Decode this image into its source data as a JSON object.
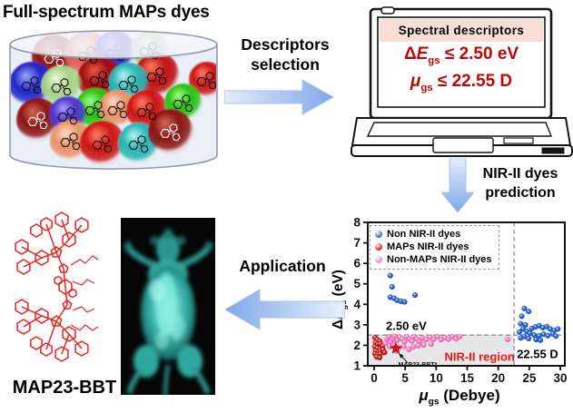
{
  "title": "Full-spectrum MAPs dyes",
  "flow": {
    "descriptors_line1": "Descriptors",
    "descriptors_line2": "selection",
    "prediction_line1": "NIR-II dyes",
    "prediction_line2": "prediction",
    "application": "Application"
  },
  "laptop": {
    "header": "Spectral descriptors",
    "eq1": {
      "sym": "Δ",
      "var": "E",
      "sub": "gs",
      "rest": " ≤ 2.50 eV"
    },
    "eq2": {
      "var": "μ",
      "sub": "gs",
      "rest": " ≤ 22.55 D"
    }
  },
  "molecule_label": "MAP23-BBT",
  "chart_data": {
    "type": "scatter",
    "xlabel": {
      "var": "μ",
      "sub": "gs",
      "rest": " (Debye)"
    },
    "ylabel": {
      "sym": "Δ",
      "var": "E",
      "sub": "gs",
      "rest": " (eV)"
    },
    "xlim": [
      0,
      30
    ],
    "ylim": [
      1,
      8
    ],
    "xticks": [
      0,
      5,
      10,
      15,
      20,
      25,
      30
    ],
    "yticks": [
      1,
      2,
      3,
      4,
      5,
      6,
      7,
      8
    ],
    "grid": false,
    "legend_position": "top-left",
    "thresholds": {
      "x_debye": 22.55,
      "y_ev": 2.5
    },
    "region": {
      "x0": 0,
      "x1": 22.55,
      "y0": 1,
      "y1": 2.5,
      "color": "#e7e7e7"
    },
    "series": [
      {
        "name": "Non NIR-II dyes",
        "color": "#2f6fdc",
        "edge": "#1a4cb0",
        "points": [
          [
            2.6,
            5.4
          ],
          [
            2.9,
            4.85
          ],
          [
            2.6,
            4.35
          ],
          [
            3.2,
            4.3
          ],
          [
            3.7,
            4.2
          ],
          [
            4.3,
            4.15
          ],
          [
            4.9,
            4.12
          ],
          [
            6.6,
            4.45
          ],
          [
            24.2,
            3.8
          ],
          [
            24.9,
            3.65
          ],
          [
            23.8,
            3.42
          ],
          [
            23.6,
            3.05
          ],
          [
            24.4,
            3.0
          ],
          [
            24.0,
            2.8
          ],
          [
            23.4,
            2.65
          ],
          [
            24.6,
            2.68
          ],
          [
            25.4,
            2.82
          ],
          [
            26.0,
            2.9
          ],
          [
            26.6,
            2.96
          ],
          [
            27.2,
            2.86
          ],
          [
            27.8,
            2.92
          ],
          [
            28.4,
            2.8
          ],
          [
            29.0,
            2.72
          ],
          [
            29.6,
            2.8
          ],
          [
            25.1,
            2.58
          ],
          [
            25.8,
            2.5
          ],
          [
            26.6,
            2.47
          ],
          [
            27.3,
            2.54
          ],
          [
            28.0,
            2.47
          ],
          [
            24.2,
            2.43
          ],
          [
            23.6,
            2.36
          ],
          [
            24.9,
            2.33
          ],
          [
            26.1,
            2.28
          ],
          [
            26.8,
            2.25
          ],
          [
            28.8,
            2.56
          ],
          [
            29.3,
            2.45
          ]
        ]
      },
      {
        "name": "MAPs NIR-II dyes",
        "color": "#d62828",
        "edge": "#9e1414",
        "points": [
          [
            0.15,
            2.38
          ],
          [
            0.5,
            2.28
          ],
          [
            0.9,
            2.2
          ],
          [
            0.25,
            2.14
          ],
          [
            0.6,
            2.05
          ],
          [
            1.0,
            2.07
          ],
          [
            0.12,
            1.93
          ],
          [
            0.5,
            1.86
          ],
          [
            0.9,
            1.82
          ],
          [
            0.25,
            1.72
          ],
          [
            0.62,
            1.68
          ],
          [
            1.0,
            1.72
          ],
          [
            0.15,
            1.58
          ],
          [
            0.6,
            1.54
          ],
          [
            1.0,
            1.58
          ],
          [
            0.4,
            1.44
          ],
          [
            0.9,
            1.4
          ],
          [
            1.35,
            1.96
          ],
          [
            1.45,
            1.79
          ],
          [
            1.7,
            1.65
          ]
        ]
      },
      {
        "name": "Non-MAPs NIR-II dyes",
        "color": "#ff86c6",
        "edge": "#e05da6",
        "points": [
          [
            1.8,
            2.1
          ],
          [
            2.1,
            2.3
          ],
          [
            2.4,
            2.42
          ],
          [
            2.7,
            2.18
          ],
          [
            3.0,
            2.32
          ],
          [
            3.3,
            2.44
          ],
          [
            3.7,
            2.25
          ],
          [
            4.1,
            2.4
          ],
          [
            4.5,
            2.3
          ],
          [
            4.9,
            2.18
          ],
          [
            5.3,
            2.42
          ],
          [
            5.7,
            2.3
          ],
          [
            6.1,
            2.2
          ],
          [
            6.5,
            2.42
          ],
          [
            6.9,
            2.3
          ],
          [
            7.3,
            2.18
          ],
          [
            7.8,
            2.35
          ],
          [
            8.4,
            2.28
          ],
          [
            9.0,
            2.4
          ],
          [
            9.6,
            2.3
          ],
          [
            10.2,
            2.42
          ],
          [
            10.8,
            2.28
          ],
          [
            11.4,
            2.38
          ],
          [
            12.0,
            2.3
          ],
          [
            12.6,
            2.42
          ],
          [
            13.2,
            2.32
          ],
          [
            13.8,
            2.42
          ],
          [
            2.5,
            1.95
          ],
          [
            3.2,
            2.02
          ],
          [
            4.0,
            1.88
          ],
          [
            4.8,
            1.95
          ],
          [
            5.6,
            1.8
          ],
          [
            6.3,
            1.92
          ],
          [
            7.1,
            1.98
          ],
          [
            8.0,
            2.02
          ],
          [
            9.2,
            2.06
          ],
          [
            3.6,
            1.72
          ],
          [
            21.5,
            2.28
          ]
        ]
      }
    ],
    "star": {
      "x": 3.5,
      "y": 1.85,
      "label": "MAP23-BBT*",
      "color": "#e01212"
    },
    "annotations": [
      {
        "text": "2.50 eV",
        "x": 1.9,
        "y": 2.75,
        "color": "#000000",
        "size": 13,
        "anchor": "start"
      },
      {
        "text": "22.55 D",
        "x": 23.0,
        "y": 1.38,
        "color": "#000000",
        "size": 13,
        "anchor": "start"
      },
      {
        "text": "NIR-II region",
        "x": 17.0,
        "y": 1.25,
        "color": "#ee1515",
        "size": 13,
        "anchor": "middle"
      }
    ]
  },
  "dye_container": {
    "balls": [
      [
        55,
        33,
        25,
        "#d06858",
        "#8e1414",
        "#ffffff"
      ],
      [
        92,
        30,
        26,
        "#ffc4b0",
        "#e0625a",
        "#111111"
      ],
      [
        122,
        27,
        23,
        "#98a6ff",
        "#2428c8",
        "#111111"
      ],
      [
        160,
        25,
        21,
        "#eef8da",
        "#9cc878",
        "#111111"
      ],
      [
        223,
        58,
        20,
        "#ff7a62",
        "#cc1616",
        "#111111"
      ],
      [
        168,
        53,
        25,
        "#ff7a62",
        "#c01212",
        "#111111"
      ],
      [
        105,
        57,
        25,
        "#e85648",
        "#a01010",
        "#111111"
      ],
      [
        137,
        62,
        23,
        "#aef4ee",
        "#2ab6b6",
        "#111111"
      ],
      [
        30,
        63,
        25,
        "#98a6ff",
        "#2428c8",
        "#111111"
      ],
      [
        63,
        65,
        23,
        "#eef8da",
        "#a8d488",
        "#111111"
      ],
      [
        100,
        90,
        23,
        "#9cff84",
        "#2cc214",
        "#111111"
      ],
      [
        125,
        90,
        21,
        "#ffd9c4",
        "#e8946a",
        "#111111"
      ],
      [
        157,
        92,
        23,
        "#ff7a62",
        "#cc1616",
        "#111111"
      ],
      [
        197,
        83,
        21,
        "#9cff84",
        "#2cc214",
        "#111111"
      ],
      [
        37,
        102,
        24,
        "#d06858",
        "#8e1414",
        "#ffffff"
      ],
      [
        70,
        97,
        21,
        "#a89aff",
        "#5038d0",
        "#111111"
      ],
      [
        73,
        125,
        23,
        "#ffd9c4",
        "#e8946a",
        "#111111"
      ],
      [
        108,
        128,
        25,
        "#ff7a62",
        "#cc1616",
        "#111111"
      ],
      [
        148,
        128,
        23,
        "#aef4ee",
        "#2ab6b6",
        "#111111"
      ],
      [
        183,
        115,
        25,
        "#d06858",
        "#8e1414",
        "#ffffff"
      ]
    ]
  }
}
